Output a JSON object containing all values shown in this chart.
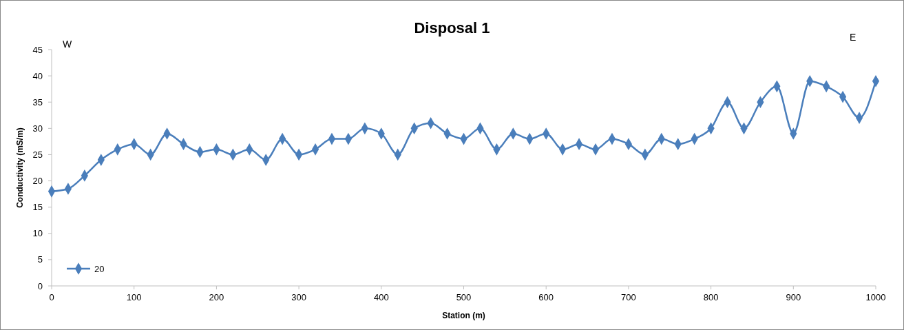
{
  "chart_data": {
    "type": "line",
    "title": "Disposal 1",
    "xlabel": "Station (m)",
    "ylabel": "Conductivity (mS/m)",
    "annotations": [
      "W",
      "E"
    ],
    "x": [
      0,
      20,
      40,
      60,
      80,
      100,
      120,
      140,
      160,
      180,
      200,
      220,
      240,
      260,
      280,
      300,
      320,
      340,
      360,
      380,
      400,
      420,
      440,
      460,
      480,
      500,
      520,
      540,
      560,
      580,
      600,
      620,
      640,
      660,
      680,
      700,
      720,
      740,
      760,
      780,
      800,
      820,
      840,
      860,
      880,
      900,
      920,
      940,
      960,
      980,
      1000
    ],
    "series": [
      {
        "name": "20",
        "color": "#4a7ebb",
        "values": [
          18,
          18.5,
          21,
          24,
          26,
          27,
          25,
          29,
          27,
          25.5,
          26,
          25,
          26,
          24,
          28,
          25,
          26,
          28,
          28,
          30,
          29,
          25,
          30,
          31,
          29,
          28,
          30,
          26,
          29,
          28,
          29,
          26,
          27,
          26,
          28,
          27,
          25,
          28,
          27,
          28,
          30,
          35,
          30,
          35,
          38,
          29,
          39,
          38,
          36,
          32,
          39
        ]
      }
    ],
    "xlim": [
      0,
      1000
    ],
    "xticks": [
      0,
      100,
      200,
      300,
      400,
      500,
      600,
      700,
      800,
      900,
      1000
    ],
    "ylim": [
      0,
      45
    ],
    "yticks": [
      0,
      5,
      10,
      15,
      20,
      25,
      30,
      35,
      40,
      45
    ],
    "grid": false,
    "legend": "bottom left",
    "marker": "diamond",
    "line_style": "solid"
  }
}
